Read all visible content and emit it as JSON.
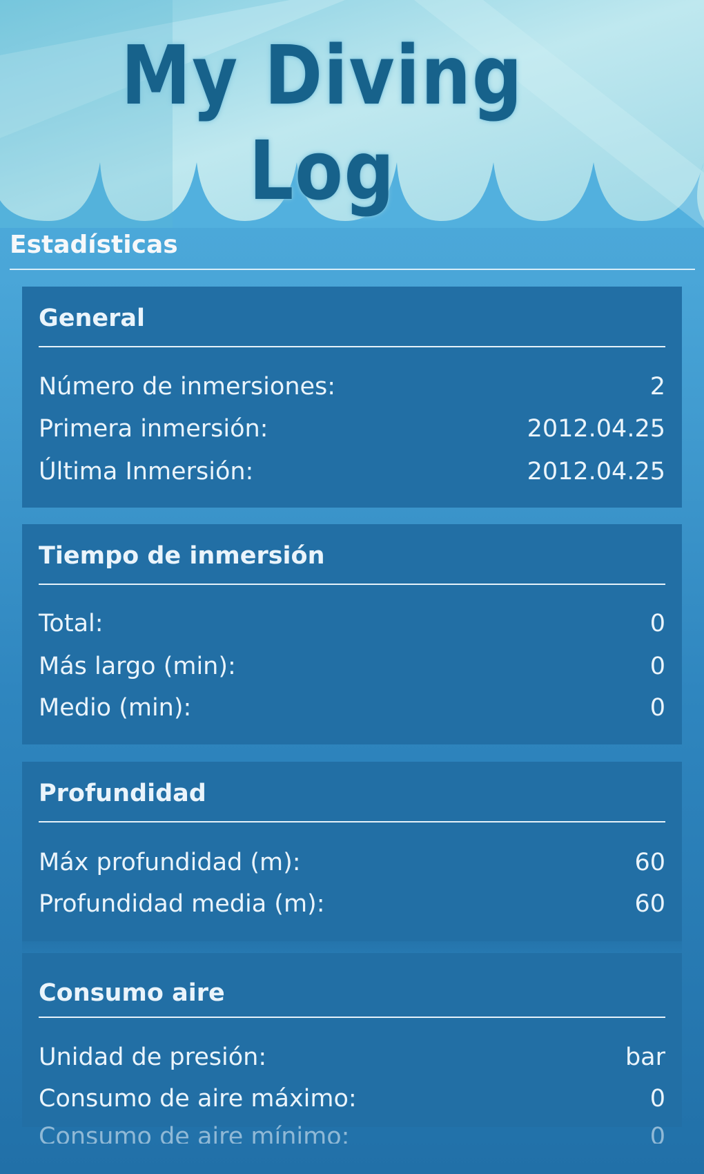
{
  "app": {
    "logo_text": "My Diving Log"
  },
  "page": {
    "title": "Estadísticas"
  },
  "colors": {
    "background": "#4aa6d8",
    "card": "#226fa5",
    "text": "#eaf4fb",
    "logo": "#17628b"
  },
  "sections": [
    {
      "title": "General",
      "rows": [
        {
          "label": "Número de inmersiones:",
          "value": "2"
        },
        {
          "label": "Primera inmersión:",
          "value": "2012.04.25"
        },
        {
          "label": "Última Inmersión:",
          "value": "2012.04.25"
        }
      ]
    },
    {
      "title": "Tiempo de inmersión",
      "rows": [
        {
          "label": "Total:",
          "value": "0"
        },
        {
          "label": "Más largo (min):",
          "value": "0"
        },
        {
          "label": "Medio (min):",
          "value": "0"
        }
      ]
    },
    {
      "title": "Profundidad",
      "rows": [
        {
          "label": "Máx profundidad (m):",
          "value": "60"
        },
        {
          "label": "Profundidad media (m):",
          "value": "60"
        }
      ]
    },
    {
      "title": "Consumo aire",
      "rows": [
        {
          "label": "Unidad de presión:",
          "value": "bar"
        },
        {
          "label": "Consumo de aire máximo:",
          "value": "0"
        },
        {
          "label": "Consumo de aire mínimo:",
          "value": "0"
        }
      ]
    }
  ]
}
